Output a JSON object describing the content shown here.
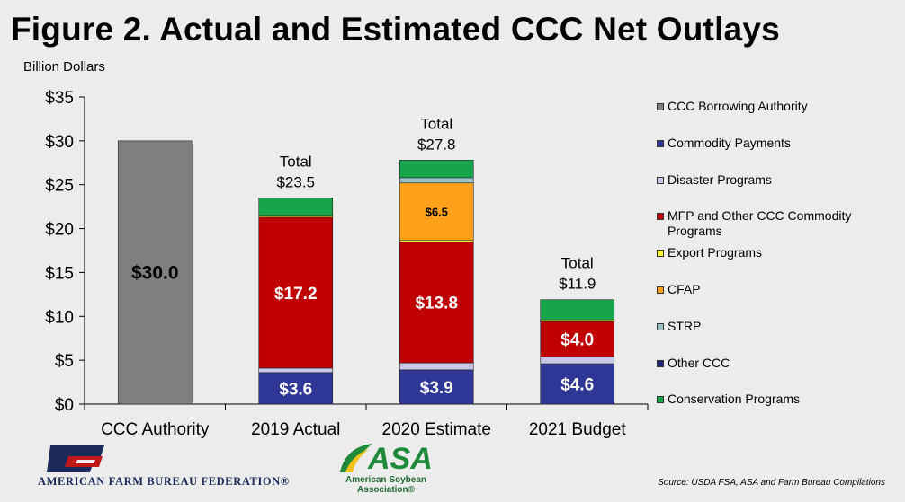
{
  "title": "Figure 2. Actual and Estimated CCC Net Outlays",
  "units_label": "Billion Dollars",
  "source": "Source: USDA FSA, ASA and Farm Bureau Compilations",
  "logos": {
    "afbf_text": "AMERICAN FARM BUREAU FEDERATION®",
    "asa_word": "ASA",
    "asa_sub": "American Soybean Association®"
  },
  "colors": {
    "CCC Borrowing Authority": "#7f7f7f",
    "Commodity Payments": "#2e3796",
    "Disaster Programs": "#c8c8e6",
    "MFP and Other CCC Commodity Programs": "#c00000",
    "Export Programs": "#ffff33",
    "CFAP": "#ffa11a",
    "STRP": "#9ac3c9",
    "Other CCC": "#1f2870",
    "Conservation Programs": "#16a54a"
  },
  "chart_data": {
    "type": "bar",
    "stacked": true,
    "categories": [
      "CCC Authority",
      "2019 Actual",
      "2020 Estimate",
      "2021 Budget"
    ],
    "ylim": [
      0,
      35
    ],
    "yticks": [
      "$0",
      "$5",
      "$10",
      "$15",
      "$20",
      "$25",
      "$30",
      "$35"
    ],
    "ylabel": "Billion Dollars",
    "legend_position": "right",
    "series": [
      {
        "name": "CCC Borrowing Authority",
        "values": [
          30.0,
          0,
          0,
          0
        ],
        "labels": [
          "$30.0",
          "",
          "",
          ""
        ]
      },
      {
        "name": "Commodity Payments",
        "values": [
          0,
          3.6,
          3.9,
          4.6
        ],
        "labels": [
          "",
          "$3.6",
          "$3.9",
          "$4.6"
        ]
      },
      {
        "name": "Disaster Programs",
        "values": [
          0,
          0.5,
          0.8,
          0.8
        ],
        "labels": [
          "",
          "",
          "",
          ""
        ]
      },
      {
        "name": "MFP and Other CCC Commodity Programs",
        "values": [
          0,
          17.2,
          13.8,
          4.0
        ],
        "labels": [
          "",
          "$17.2",
          "$13.8",
          "$4.0"
        ]
      },
      {
        "name": "Export Programs",
        "values": [
          0,
          0.2,
          0.2,
          0.2
        ],
        "labels": [
          "",
          "",
          "",
          ""
        ]
      },
      {
        "name": "CFAP",
        "values": [
          0,
          0,
          6.5,
          0
        ],
        "labels": [
          "",
          "",
          "$6.5",
          ""
        ]
      },
      {
        "name": "STRP",
        "values": [
          0,
          0,
          0.6,
          0
        ],
        "labels": [
          "",
          "",
          "",
          ""
        ]
      },
      {
        "name": "Other CCC",
        "values": [
          0,
          0,
          0,
          0
        ],
        "labels": [
          "",
          "",
          "",
          ""
        ]
      },
      {
        "name": "Conservation Programs",
        "values": [
          0,
          2.0,
          2.0,
          2.3
        ],
        "labels": [
          "",
          "",
          "",
          ""
        ]
      }
    ],
    "totals": [
      {
        "category": "2019 Actual",
        "title": "Total",
        "value": "$23.5"
      },
      {
        "category": "2020 Estimate",
        "title": "Total",
        "value": "$27.8"
      },
      {
        "category": "2021 Budget",
        "title": "Total",
        "value": "$11.9"
      }
    ]
  }
}
